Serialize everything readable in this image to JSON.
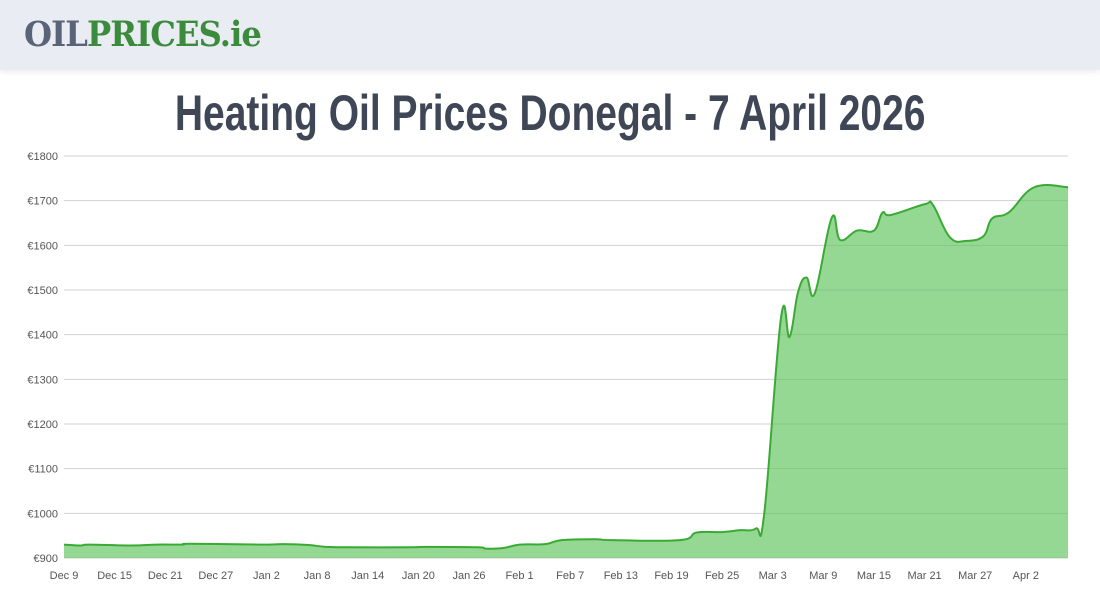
{
  "header": {
    "logo_part1": "OIL",
    "logo_part2": "PRICES.ie"
  },
  "page_title": "Heating Oil Prices Donegal - 7 April 2026",
  "chart_data": {
    "type": "area",
    "title": "Heating Oil Prices Donegal - 7 April 2026",
    "xlabel": "",
    "ylabel": "",
    "ylim": [
      900,
      1800
    ],
    "y_ticks": [
      "€900",
      "€1000",
      "€1100",
      "€1200",
      "€1300",
      "€1400",
      "€1500",
      "€1600",
      "€1700",
      "€1800"
    ],
    "y_tick_values": [
      900,
      1000,
      1100,
      1200,
      1300,
      1400,
      1500,
      1600,
      1700,
      1800
    ],
    "x_range": [
      "2025-12-09",
      "2026-04-07"
    ],
    "x_ticks": [
      {
        "date": "2025-12-09",
        "label": "Dec 9"
      },
      {
        "date": "2025-12-15",
        "label": "Dec 15"
      },
      {
        "date": "2025-12-21",
        "label": "Dec 21"
      },
      {
        "date": "2025-12-27",
        "label": "Dec 27"
      },
      {
        "date": "2026-01-02",
        "label": "Jan 2"
      },
      {
        "date": "2026-01-08",
        "label": "Jan 8"
      },
      {
        "date": "2026-01-14",
        "label": "Jan 14"
      },
      {
        "date": "2026-01-20",
        "label": "Jan 20"
      },
      {
        "date": "2026-01-26",
        "label": "Jan 26"
      },
      {
        "date": "2026-02-01",
        "label": "Feb 1"
      },
      {
        "date": "2026-02-07",
        "label": "Feb 7"
      },
      {
        "date": "2026-02-13",
        "label": "Feb 13"
      },
      {
        "date": "2026-02-19",
        "label": "Feb 19"
      },
      {
        "date": "2026-02-25",
        "label": "Feb 25"
      },
      {
        "date": "2026-03-03",
        "label": "Mar 3"
      },
      {
        "date": "2026-03-09",
        "label": "Mar 9"
      },
      {
        "date": "2026-03-15",
        "label": "Mar 15"
      },
      {
        "date": "2026-03-21",
        "label": "Mar 21"
      },
      {
        "date": "2026-03-27",
        "label": "Mar 27"
      },
      {
        "date": "2026-04-02",
        "label": "Apr 2"
      }
    ],
    "grid": true,
    "line_color": "#3aaa35",
    "fill_color": "#8fd68e",
    "points": [
      [
        "2025-12-09",
        930
      ],
      [
        "2025-12-11",
        928
      ],
      [
        "2025-12-12",
        930
      ],
      [
        "2025-12-17",
        928
      ],
      [
        "2025-12-20",
        930
      ],
      [
        "2025-12-23",
        930
      ],
      [
        "2025-12-24",
        932
      ],
      [
        "2026-01-01",
        930
      ],
      [
        "2026-01-04",
        931
      ],
      [
        "2026-01-07",
        929
      ],
      [
        "2026-01-09",
        925
      ],
      [
        "2026-01-12",
        924
      ],
      [
        "2026-01-19",
        924
      ],
      [
        "2026-01-21",
        925
      ],
      [
        "2026-01-27",
        924
      ],
      [
        "2026-01-28",
        921
      ],
      [
        "2026-01-30",
        922
      ],
      [
        "2026-02-01",
        930
      ],
      [
        "2026-02-04",
        931
      ],
      [
        "2026-02-06",
        940
      ],
      [
        "2026-02-10",
        942
      ],
      [
        "2026-02-12",
        940
      ],
      [
        "2026-02-20",
        940
      ],
      [
        "2026-02-22",
        957
      ],
      [
        "2026-02-25",
        958
      ],
      [
        "2026-02-27",
        962
      ],
      [
        "2026-03-01",
        966
      ],
      [
        "2026-03-02",
        1000
      ],
      [
        "2026-03-04",
        1440
      ],
      [
        "2026-03-05",
        1395
      ],
      [
        "2026-03-06",
        1495
      ],
      [
        "2026-03-07",
        1528
      ],
      [
        "2026-03-08",
        1493
      ],
      [
        "2026-03-10",
        1662
      ],
      [
        "2026-03-11",
        1612
      ],
      [
        "2026-03-13",
        1633
      ],
      [
        "2026-03-15",
        1633
      ],
      [
        "2026-03-16",
        1673
      ],
      [
        "2026-03-17",
        1668
      ],
      [
        "2026-03-21",
        1692
      ],
      [
        "2026-03-22",
        1690
      ],
      [
        "2026-03-24",
        1618
      ],
      [
        "2026-03-26",
        1610
      ],
      [
        "2026-03-28",
        1621
      ],
      [
        "2026-03-29",
        1660
      ],
      [
        "2026-03-31",
        1674
      ],
      [
        "2026-04-03",
        1730
      ],
      [
        "2026-04-07",
        1730
      ]
    ]
  }
}
